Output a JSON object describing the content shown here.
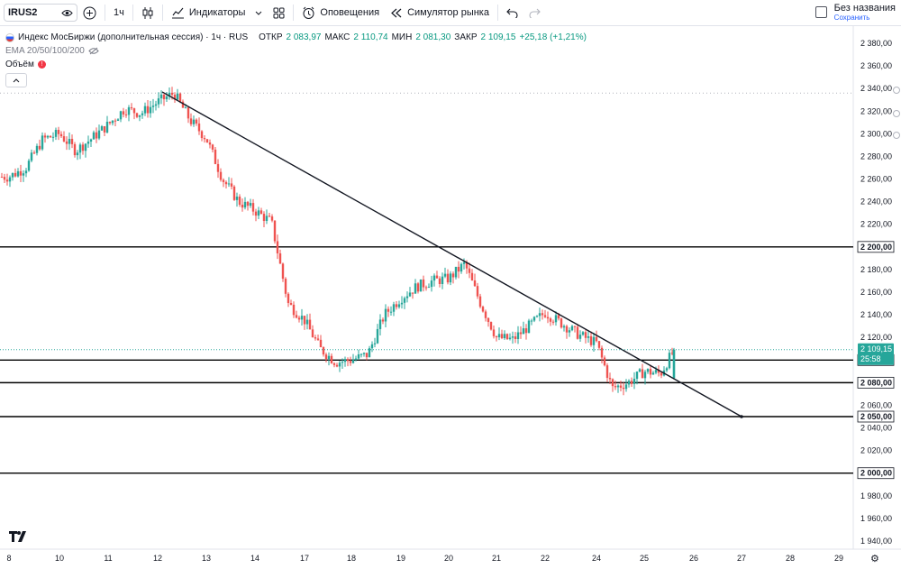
{
  "toolbar": {
    "symbol": "IRUS2",
    "interval": "1ч",
    "indicators_label": "Индикаторы",
    "alerts_label": "Оповещения",
    "replay_label": "Симулятор рынка",
    "layout_name": "Без названия",
    "save_label": "Сохранить"
  },
  "legend": {
    "title": "Индекс МосБиржи (дополнительная сессия) · 1ч · RUS",
    "open_label": "ОТКР",
    "open_value": "2 083,97",
    "high_label": "МАКС",
    "high_value": "2 110,74",
    "low_label": "МИН",
    "low_value": "2 081,30",
    "close_label": "ЗАКР",
    "close_value": "2 109,15",
    "change": "+25,18 (+1,21%)",
    "ema_label": "EMA 20/50/100/200",
    "volume_label": "Объём"
  },
  "colors": {
    "up": "#26a69a",
    "down": "#ef5350",
    "price_tag": "#26a69a",
    "line": "#131722"
  },
  "chart_data": {
    "type": "candlestick",
    "symbol": "IRUS2",
    "interval": "1ч",
    "ylim": [
      1935,
      2390
    ],
    "y_ticks": [
      "2 380,00",
      "2 360,00",
      "2 340,00",
      "2 320,00",
      "2 300,00",
      "2 280,00",
      "2 260,00",
      "2 240,00",
      "2 220,00",
      "2 200,00",
      "2 180,00",
      "2 160,00",
      "2 140,00",
      "2 120,00",
      "2 100,00",
      "2 080,00",
      "2 060,00",
      "2 040,00",
      "2 020,00",
      "2 000,00",
      "1 980,00",
      "1 960,00",
      "1 940,00"
    ],
    "x_ticks": [
      "8",
      "10",
      "11",
      "12",
      "13",
      "14",
      "17",
      "18",
      "19",
      "20",
      "21",
      "22",
      "24",
      "25",
      "26",
      "27",
      "28",
      "29"
    ],
    "horizontal_levels": [
      {
        "value": 2200,
        "label": "2 200,00"
      },
      {
        "value": 2100,
        "label": "2 100,00"
      },
      {
        "value": 2080,
        "label": "2 080,00"
      },
      {
        "value": 2050,
        "label": "2 050,00"
      },
      {
        "value": 2000,
        "label": "2 000,00"
      }
    ],
    "trendline": {
      "from": {
        "x": "12",
        "y": 2337
      },
      "to": {
        "x": "27",
        "y": 2050
      }
    },
    "last_price": {
      "value": "2 109,15",
      "countdown": "25:58"
    },
    "prev_high_level": 2336,
    "price_path": [
      {
        "x": "8",
        "y": 2262
      },
      {
        "x": "8",
        "y": 2270
      },
      {
        "x": "8",
        "y": 2295
      },
      {
        "x": "10",
        "y": 2300
      },
      {
        "x": "10",
        "y": 2285
      },
      {
        "x": "10",
        "y": 2296
      },
      {
        "x": "11",
        "y": 2308
      },
      {
        "x": "11",
        "y": 2322
      },
      {
        "x": "11",
        "y": 2318
      },
      {
        "x": "12",
        "y": 2328
      },
      {
        "x": "12",
        "y": 2336
      },
      {
        "x": "12",
        "y": 2312
      },
      {
        "x": "13",
        "y": 2296
      },
      {
        "x": "13",
        "y": 2260
      },
      {
        "x": "13",
        "y": 2240
      },
      {
        "x": "14",
        "y": 2232
      },
      {
        "x": "14",
        "y": 2222
      },
      {
        "x": "14",
        "y": 2150
      },
      {
        "x": "17",
        "y": 2135
      },
      {
        "x": "17",
        "y": 2110
      },
      {
        "x": "17",
        "y": 2098
      },
      {
        "x": "18",
        "y": 2100
      },
      {
        "x": "18",
        "y": 2105
      },
      {
        "x": "18",
        "y": 2140
      },
      {
        "x": "19",
        "y": 2155
      },
      {
        "x": "19",
        "y": 2165
      },
      {
        "x": "19",
        "y": 2170
      },
      {
        "x": "20",
        "y": 2172
      },
      {
        "x": "20",
        "y": 2185
      },
      {
        "x": "20",
        "y": 2150
      },
      {
        "x": "21",
        "y": 2120
      },
      {
        "x": "21",
        "y": 2118
      },
      {
        "x": "21",
        "y": 2130
      },
      {
        "x": "22",
        "y": 2142
      },
      {
        "x": "22",
        "y": 2132
      },
      {
        "x": "22",
        "y": 2122
      },
      {
        "x": "24",
        "y": 2115
      },
      {
        "x": "24",
        "y": 2075
      },
      {
        "x": "24",
        "y": 2080
      },
      {
        "x": "25",
        "y": 2090
      },
      {
        "x": "25",
        "y": 2088
      },
      {
        "x": "25",
        "y": 2109
      }
    ]
  }
}
